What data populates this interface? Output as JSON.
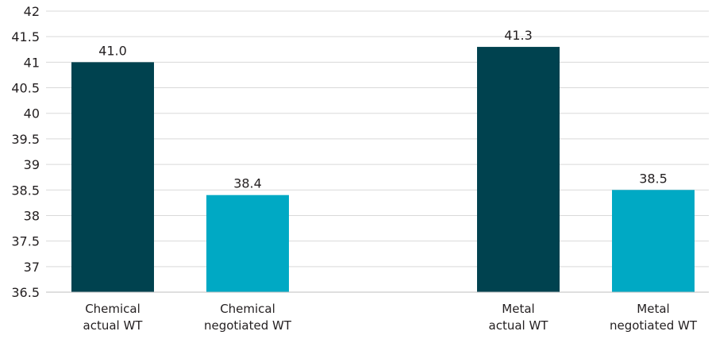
{
  "chart_data": {
    "type": "bar",
    "title": "",
    "xlabel": "",
    "ylabel": "",
    "ylim": [
      36.5,
      42
    ],
    "yticks": [
      "36.5",
      "37",
      "37.5",
      "38",
      "38.5",
      "39",
      "39.5",
      "40",
      "40.5",
      "41",
      "41.5",
      "42"
    ],
    "grid": true,
    "legend": "none",
    "groups": [
      {
        "bars": [
          {
            "label_lines": [
              "Chemical",
              "actual WT"
            ],
            "value": 41.0,
            "value_label": "41.0",
            "color": "#00424f"
          },
          {
            "label_lines": [
              "Chemical",
              "negotiated WT"
            ],
            "value": 38.4,
            "value_label": "38.4",
            "color": "#00a9c4"
          }
        ]
      },
      {
        "bars": [
          {
            "label_lines": [
              "Metal",
              "actual WT"
            ],
            "value": 41.3,
            "value_label": "41.3",
            "color": "#00424f"
          },
          {
            "label_lines": [
              "Metal",
              "negotiated WT"
            ],
            "value": 38.5,
            "value_label": "38.5",
            "color": "#00a9c4"
          }
        ]
      }
    ]
  }
}
